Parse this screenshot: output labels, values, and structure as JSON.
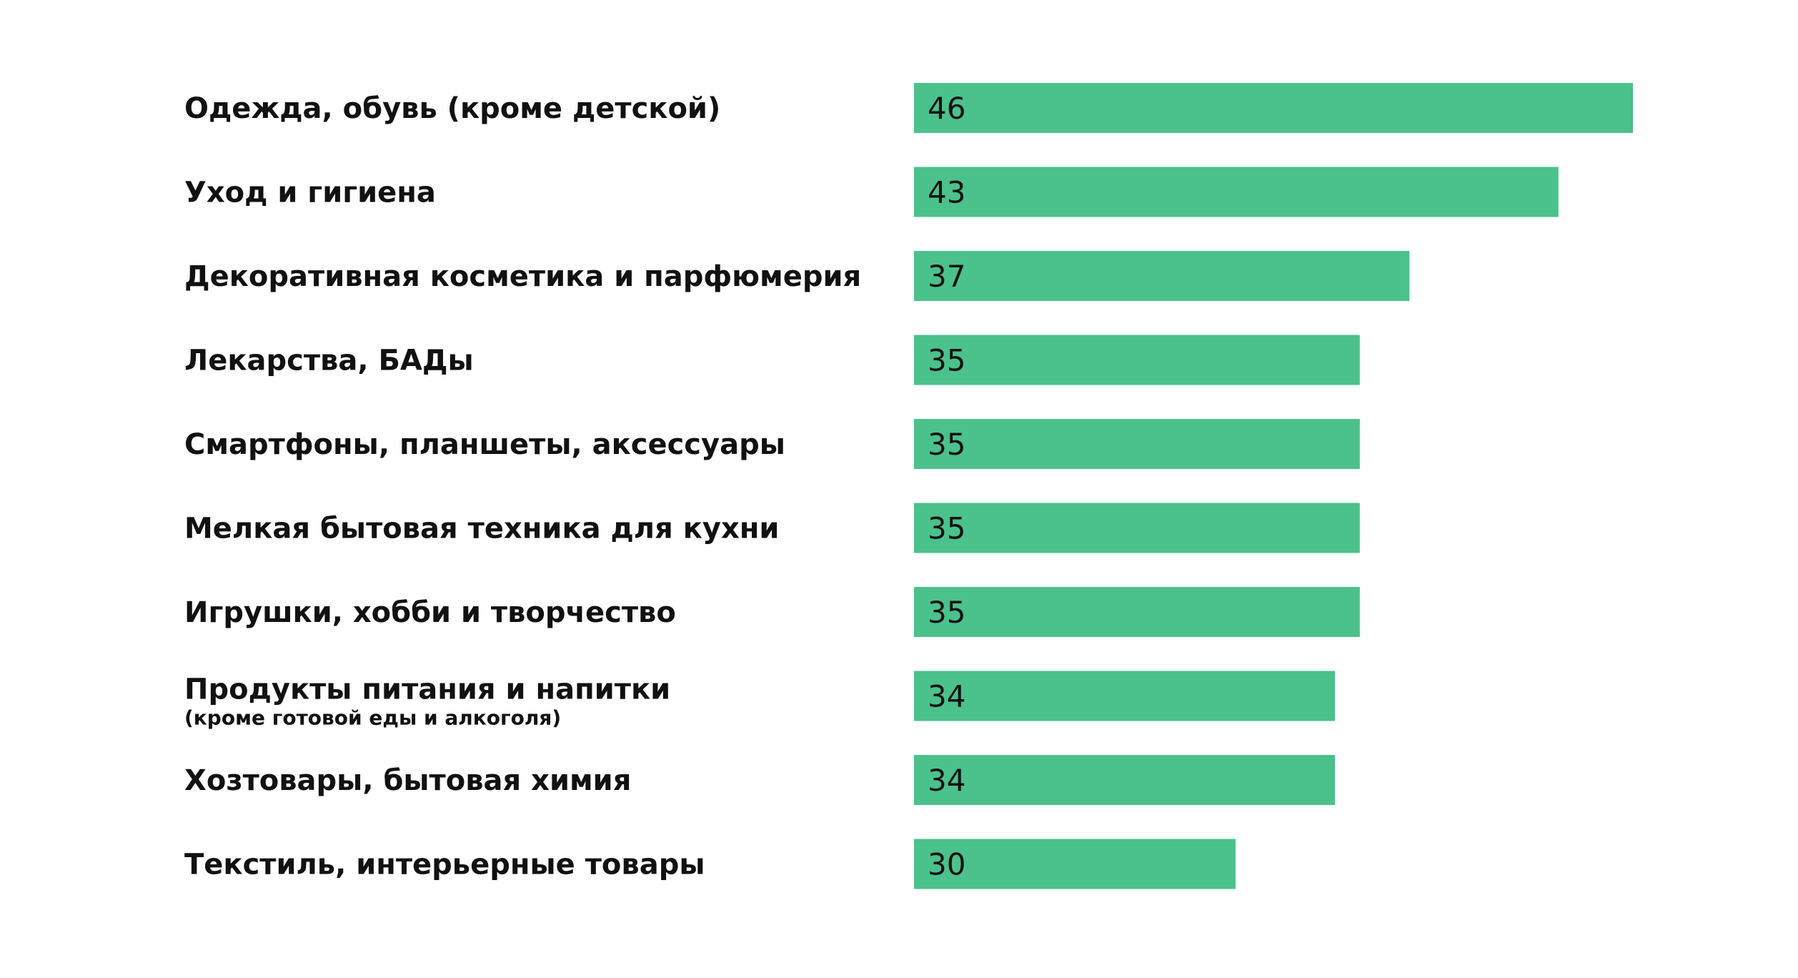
{
  "chart_data": {
    "type": "bar",
    "orientation": "horizontal",
    "categories": [
      "Одежда, обувь (кроме детской)",
      "Уход и гигиена",
      "Декоративная косметика и парфюмерия",
      "Лекарства, БАДы",
      "Смартфоны, планшеты, аксессуары",
      "Мелкая бытовая техника для кухни",
      "Игрушки, хобби и творчество",
      "Продукты питания и напитки",
      "Хозтовары, бытовая химия",
      "Текстиль, интерьерные товары"
    ],
    "subcategories": [
      "",
      "",
      "",
      "",
      "",
      "",
      "",
      "(кроме готовой еды и алкоголя)",
      "",
      ""
    ],
    "values": [
      46,
      43,
      37,
      35,
      35,
      35,
      35,
      34,
      34,
      30
    ],
    "bar_color": "#4bc18b",
    "grid": false,
    "legend": "none"
  }
}
